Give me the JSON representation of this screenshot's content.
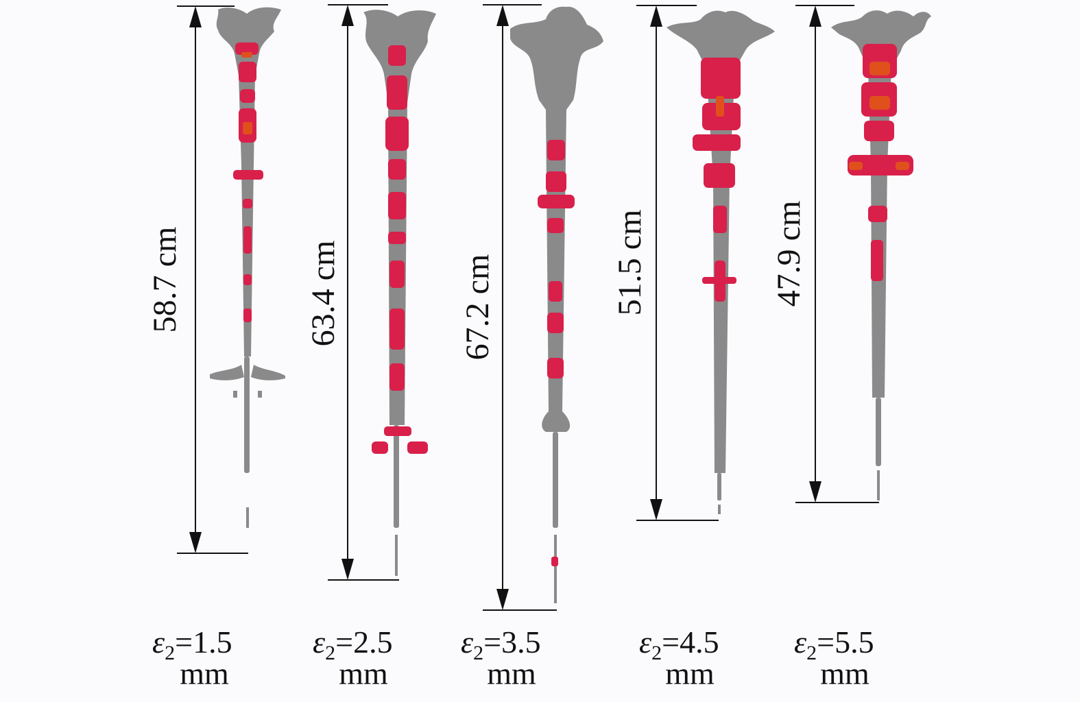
{
  "panels": [
    {
      "id": "p1",
      "length_text": "58.7 cm",
      "label_lines": {
        "symbol": "ε",
        "subscript": "2",
        "value": "=1.5",
        "unit": "mm"
      },
      "length_cm": 58.7
    },
    {
      "id": "p2",
      "length_text": "63.4 cm",
      "label_lines": {
        "symbol": "ε",
        "subscript": "2",
        "value": "=2.5",
        "unit": "mm"
      },
      "length_cm": 63.4
    },
    {
      "id": "p3",
      "length_text": "67.2 cm",
      "label_lines": {
        "symbol": "ε",
        "subscript": "2",
        "value": "=3.5",
        "unit": "mm"
      },
      "length_cm": 67.2
    },
    {
      "id": "p4",
      "length_text": "51.5 cm",
      "label_lines": {
        "symbol": "ε",
        "subscript": "2",
        "value": "=4.5",
        "unit": "mm"
      },
      "length_cm": 51.5
    },
    {
      "id": "p5",
      "length_text": "47.9 cm",
      "label_lines": {
        "symbol": "ε",
        "subscript": "2",
        "value": "=5.5",
        "unit": "mm"
      },
      "length_cm": 47.9
    }
  ],
  "colors": {
    "body": "#8a8a8a",
    "damage": "#d8204a",
    "hot": "#e0501c",
    "line": "#111111",
    "background": "#fbfbfd"
  }
}
